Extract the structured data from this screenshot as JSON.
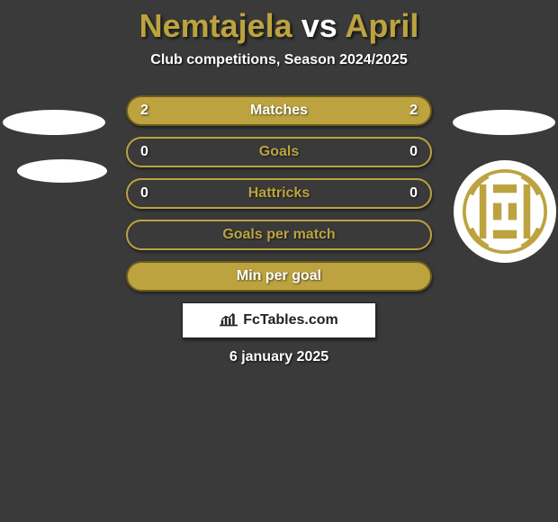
{
  "title": {
    "player1": "Nemtajela",
    "vs": "vs",
    "player2": "April",
    "player1_color": "#bca33f",
    "vs_color": "#ffffff",
    "player2_color": "#bca33f"
  },
  "subtitle": "Club competitions, Season 2024/2025",
  "rows": [
    {
      "label": "Matches",
      "left": "2",
      "right": "2",
      "bg": "#bca33f",
      "border": "#6e5c1c",
      "label_color": "#ffffff"
    },
    {
      "label": "Goals",
      "left": "0",
      "right": "0",
      "bg": "#3a3a3a",
      "border": "#bca33f",
      "label_color": "#bca33f"
    },
    {
      "label": "Hattricks",
      "left": "0",
      "right": "0",
      "bg": "#3a3a3a",
      "border": "#bca33f",
      "label_color": "#bca33f"
    },
    {
      "label": "Goals per match",
      "left": "",
      "right": "",
      "bg": "#3a3a3a",
      "border": "#bca33f",
      "label_color": "#bca33f"
    },
    {
      "label": "Min per goal",
      "left": "",
      "right": "",
      "bg": "#bca33f",
      "border": "#6e5c1c",
      "label_color": "#ffffff"
    }
  ],
  "footer_brand": "FcTables.com",
  "date": "6 january 2025",
  "colors": {
    "background": "#3a3a3a",
    "accent": "#bca33f",
    "white": "#ffffff",
    "black": "#222222"
  },
  "badge": {
    "ring_color": "#bca33f",
    "bg": "#ffffff",
    "stripe_color": "#bca33f"
  }
}
